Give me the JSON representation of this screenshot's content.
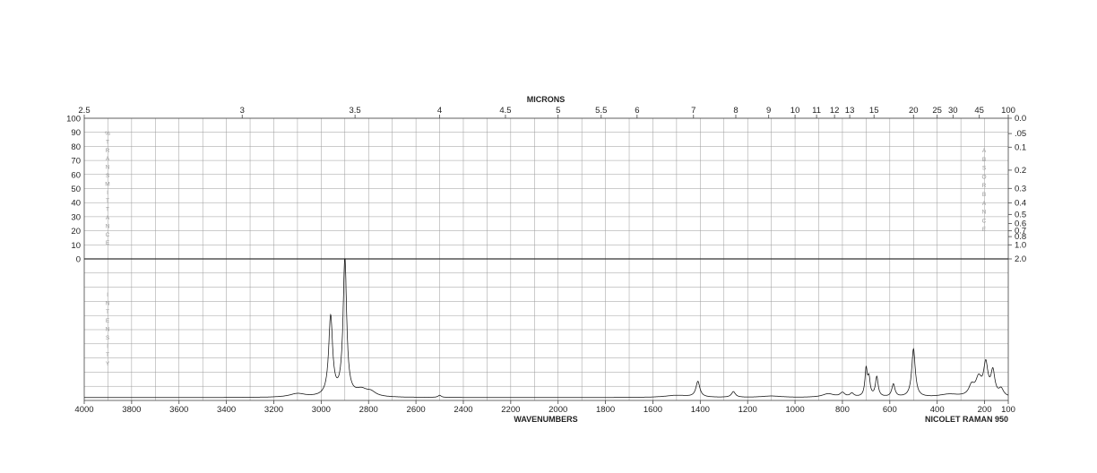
{
  "chart_data": {
    "type": "line",
    "title": "",
    "top_axis_title": "MICRONS",
    "xlabel": "WAVENUMBERS",
    "instrument_label": "NICOLET RAMAN 950",
    "left_upper_label": "%TRANSMITTANCE",
    "left_lower_label": "INTENSITY",
    "right_upper_label": "ABSORBANCE",
    "xlim": [
      4000,
      100
    ],
    "x_ticks": [
      4000,
      3800,
      3600,
      3400,
      3200,
      3000,
      2800,
      2600,
      2400,
      2200,
      2000,
      1800,
      1600,
      1400,
      1200,
      1000,
      800,
      600,
      400,
      200,
      100
    ],
    "micron_ticks": [
      "2.5",
      "3",
      "3.5",
      "4",
      "4.5",
      "5",
      "5.5",
      "6",
      "7",
      "8",
      "9",
      "10",
      "11",
      "12",
      "13",
      "15",
      "20",
      "25",
      "30",
      "45",
      "100"
    ],
    "transmittance_ticks": [
      100,
      90,
      80,
      70,
      60,
      50,
      40,
      30,
      20,
      10,
      0
    ],
    "absorbance_ticks": [
      "0.0",
      ".05",
      "0.1",
      "0.2",
      "0.3",
      "0.4",
      "0.5",
      "0.6",
      "0.7",
      "0.8",
      "1.0",
      "2.0"
    ],
    "grid": true,
    "baseline": 0.02,
    "peaks": [
      {
        "x": 3100,
        "h": 0.025,
        "w": 40
      },
      {
        "x": 2960,
        "h": 0.56,
        "w": 10
      },
      {
        "x": 2900,
        "h": 0.97,
        "w": 9
      },
      {
        "x": 2830,
        "h": 0.045,
        "w": 30
      },
      {
        "x": 2790,
        "h": 0.03,
        "w": 25
      },
      {
        "x": 2500,
        "h": 0.015,
        "w": 8
      },
      {
        "x": 1500,
        "h": 0.015,
        "w": 60
      },
      {
        "x": 1410,
        "h": 0.11,
        "w": 10
      },
      {
        "x": 1260,
        "h": 0.04,
        "w": 10
      },
      {
        "x": 1100,
        "h": 0.01,
        "w": 50
      },
      {
        "x": 860,
        "h": 0.025,
        "w": 30
      },
      {
        "x": 800,
        "h": 0.03,
        "w": 12
      },
      {
        "x": 760,
        "h": 0.025,
        "w": 10
      },
      {
        "x": 700,
        "h": 0.19,
        "w": 6
      },
      {
        "x": 688,
        "h": 0.12,
        "w": 6
      },
      {
        "x": 655,
        "h": 0.14,
        "w": 7
      },
      {
        "x": 585,
        "h": 0.09,
        "w": 8
      },
      {
        "x": 500,
        "h": 0.34,
        "w": 9
      },
      {
        "x": 350,
        "h": 0.02,
        "w": 50
      },
      {
        "x": 255,
        "h": 0.07,
        "w": 14
      },
      {
        "x": 225,
        "h": 0.12,
        "w": 15
      },
      {
        "x": 195,
        "h": 0.22,
        "w": 11
      },
      {
        "x": 165,
        "h": 0.17,
        "w": 10
      },
      {
        "x": 130,
        "h": 0.05,
        "w": 12
      }
    ]
  }
}
